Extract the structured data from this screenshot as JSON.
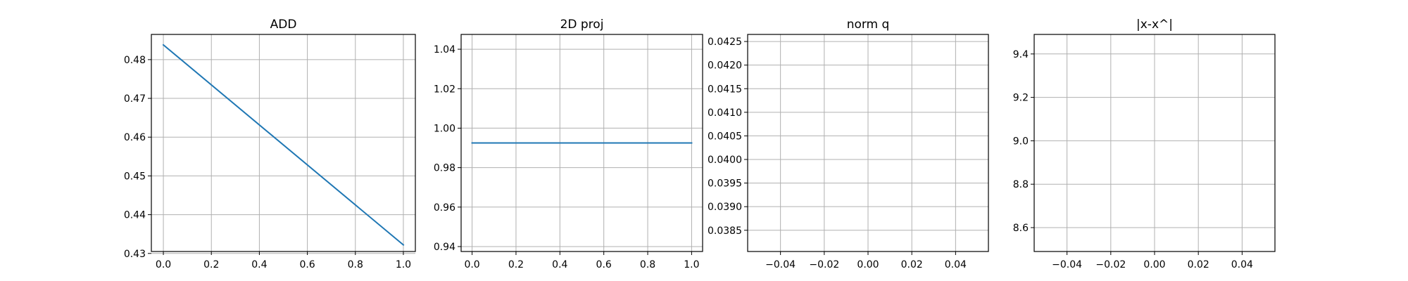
{
  "chart_data": [
    {
      "type": "line",
      "title": "ADD",
      "x": [
        0.0,
        1.0
      ],
      "series": [
        {
          "values": [
            0.4838,
            0.4322
          ]
        }
      ],
      "xlim": [
        -0.05,
        1.05
      ],
      "ylim": [
        0.4305,
        0.4865
      ],
      "xticks": [
        0.0,
        0.2,
        0.4,
        0.6,
        0.8,
        1.0
      ],
      "xtick_labels": [
        "0.0",
        "0.2",
        "0.4",
        "0.6",
        "0.8",
        "1.0"
      ],
      "yticks": [
        0.43,
        0.44,
        0.45,
        0.46,
        0.47,
        0.48
      ],
      "ytick_labels": [
        "0.43",
        "0.44",
        "0.45",
        "0.46",
        "0.47",
        "0.48"
      ],
      "grid": true,
      "line_color": "#1f77b4"
    },
    {
      "type": "line",
      "title": "2D proj",
      "x": [
        0.0,
        1.0
      ],
      "series": [
        {
          "values": [
            0.9925,
            0.9925
          ]
        }
      ],
      "xlim": [
        -0.05,
        1.05
      ],
      "ylim": [
        0.9375,
        1.0475
      ],
      "xticks": [
        0.0,
        0.2,
        0.4,
        0.6,
        0.8,
        1.0
      ],
      "xtick_labels": [
        "0.0",
        "0.2",
        "0.4",
        "0.6",
        "0.8",
        "1.0"
      ],
      "yticks": [
        0.94,
        0.96,
        0.98,
        1.0,
        1.02,
        1.04
      ],
      "ytick_labels": [
        "0.94",
        "0.96",
        "0.98",
        "1.00",
        "1.02",
        "1.04"
      ],
      "grid": true,
      "line_color": "#1f77b4"
    },
    {
      "type": "line",
      "title": "norm q",
      "x": [],
      "series": [],
      "xlim": [
        -0.055,
        0.055
      ],
      "ylim": [
        0.03805,
        0.04265
      ],
      "xticks": [
        -0.04,
        -0.02,
        0.0,
        0.02,
        0.04
      ],
      "xtick_labels": [
        "−0.04",
        "−0.02",
        "0.00",
        "0.02",
        "0.04"
      ],
      "yticks": [
        0.0385,
        0.039,
        0.0395,
        0.04,
        0.0405,
        0.041,
        0.0415,
        0.042,
        0.0425
      ],
      "ytick_labels": [
        "0.0385",
        "0.0390",
        "0.0395",
        "0.0400",
        "0.0405",
        "0.0410",
        "0.0415",
        "0.0420",
        "0.0425"
      ],
      "grid": true,
      "line_color": "#1f77b4"
    },
    {
      "type": "line",
      "title": "|x-x^|",
      "x": [],
      "series": [],
      "xlim": [
        -0.055,
        0.055
      ],
      "ylim": [
        8.49,
        9.49
      ],
      "xticks": [
        -0.04,
        -0.02,
        0.0,
        0.02,
        0.04
      ],
      "xtick_labels": [
        "−0.04",
        "−0.02",
        "0.00",
        "0.02",
        "0.04"
      ],
      "yticks": [
        8.6,
        8.8,
        9.0,
        9.2,
        9.4
      ],
      "ytick_labels": [
        "8.6",
        "8.8",
        "9.0",
        "9.2",
        "9.4"
      ],
      "grid": true,
      "line_color": "#1f77b4"
    }
  ]
}
